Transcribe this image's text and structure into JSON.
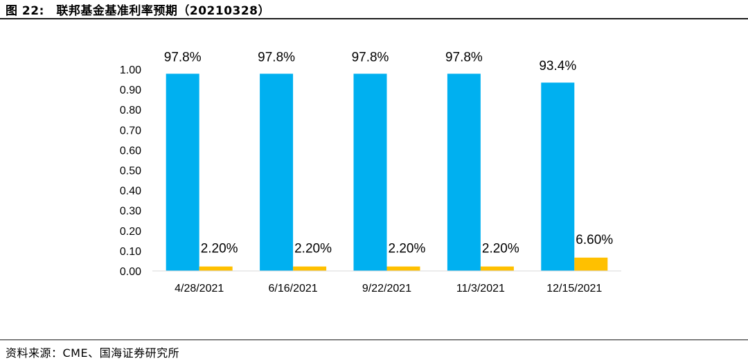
{
  "header": {
    "title": "图 22:　联邦基金基准利率预期（20210328）"
  },
  "footer": {
    "source": "资料来源：CME、国海证券研究所"
  },
  "chart_data": {
    "type": "bar",
    "title": "",
    "xlabel": "",
    "ylabel": "",
    "ylim": [
      0,
      1.0
    ],
    "yticks": [
      "0.00",
      "0.10",
      "0.20",
      "0.30",
      "0.40",
      "0.50",
      "0.60",
      "0.70",
      "0.80",
      "0.90",
      "1.00"
    ],
    "categories": [
      "4/28/2021",
      "6/16/2021",
      "9/22/2021",
      "11/3/2021",
      "12/15/2021"
    ],
    "series": [
      {
        "color": "#00b0f0",
        "values": [
          0.978,
          0.978,
          0.978,
          0.978,
          0.934
        ],
        "labels": [
          "97.8%",
          "97.8%",
          "97.8%",
          "97.8%",
          "93.4%"
        ]
      },
      {
        "color": "#ffc000",
        "values": [
          0.022,
          0.022,
          0.022,
          0.022,
          0.066
        ],
        "labels": [
          "2.20%",
          "2.20%",
          "2.20%",
          "2.20%",
          "6.60%"
        ]
      }
    ],
    "legend": "none",
    "grid": false
  }
}
